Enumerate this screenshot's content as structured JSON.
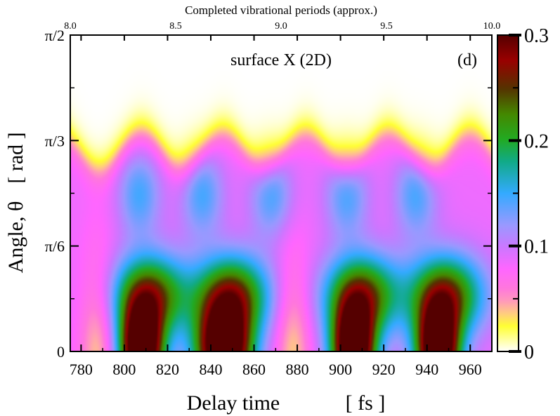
{
  "chart_data": {
    "type": "heatmap",
    "title": "surface X (2D)",
    "panel_label": "(d)",
    "xlabel": "Delay time",
    "xlabel_unit": "[ fs ]",
    "ylabel": "Angle, θ",
    "ylabel_unit": "[ rad ]",
    "top_axis_label": "Completed vibrational periods (approx.)",
    "xlim": [
      775,
      970
    ],
    "ylim_rad": [
      0,
      1.5708
    ],
    "x_ticks": [
      {
        "v": 780,
        "label": "780"
      },
      {
        "v": 800,
        "label": "800"
      },
      {
        "v": 820,
        "label": "820"
      },
      {
        "v": 840,
        "label": "840"
      },
      {
        "v": 860,
        "label": "860"
      },
      {
        "v": 880,
        "label": "880"
      },
      {
        "v": 900,
        "label": "900"
      },
      {
        "v": 920,
        "label": "920"
      },
      {
        "v": 940,
        "label": "940"
      },
      {
        "v": 960,
        "label": "960"
      }
    ],
    "y_ticks": [
      {
        "v": 0,
        "label": "0"
      },
      {
        "v": 0.5236,
        "label": "π/6"
      },
      {
        "v": 1.0472,
        "label": "π/3"
      },
      {
        "v": 1.5708,
        "label": "π/2"
      }
    ],
    "top_ticks": [
      {
        "v": 8.0,
        "label": "8.0"
      },
      {
        "v": 8.5,
        "label": "8.5"
      },
      {
        "v": 9.0,
        "label": "9.0"
      },
      {
        "v": 9.5,
        "label": "9.5"
      },
      {
        "v": 10.0,
        "label": "10.0"
      }
    ],
    "top_axis_range": [
      8.0,
      10.0
    ],
    "colorbar": {
      "range": [
        0,
        0.3
      ],
      "ticks": [
        {
          "v": 0,
          "label": "0"
        },
        {
          "v": 0.1,
          "label": "0.1"
        },
        {
          "v": 0.2,
          "label": "0.2"
        },
        {
          "v": 0.3,
          "label": "0.3"
        }
      ],
      "colors": [
        {
          "at": 0.0,
          "color": "#ffffff"
        },
        {
          "at": 0.04,
          "color": "#ffff99"
        },
        {
          "at": 0.08,
          "color": "#ffff33"
        },
        {
          "at": 0.12,
          "color": "#ffcc80"
        },
        {
          "at": 0.16,
          "color": "#ff99bb"
        },
        {
          "at": 0.2,
          "color": "#ff77dd"
        },
        {
          "at": 0.26,
          "color": "#ff66ff"
        },
        {
          "at": 0.33,
          "color": "#cc77ff"
        },
        {
          "at": 0.4,
          "color": "#9999ff"
        },
        {
          "at": 0.5,
          "color": "#33aaff"
        },
        {
          "at": 0.6,
          "color": "#11aa88"
        },
        {
          "at": 0.67,
          "color": "#22aa22"
        },
        {
          "at": 0.75,
          "color": "#448800"
        },
        {
          "at": 0.83,
          "color": "#553300"
        },
        {
          "at": 0.92,
          "color": "#990000"
        },
        {
          "at": 1.0,
          "color": "#550000"
        }
      ]
    },
    "density_peaks": [
      {
        "t": 808,
        "theta": 0.05,
        "value": 0.29
      },
      {
        "t": 846,
        "theta": 0.05,
        "value": 0.28
      },
      {
        "t": 906,
        "theta": 0.05,
        "value": 0.29
      },
      {
        "t": 945,
        "theta": 0.05,
        "value": 0.28
      }
    ],
    "grid": false
  }
}
